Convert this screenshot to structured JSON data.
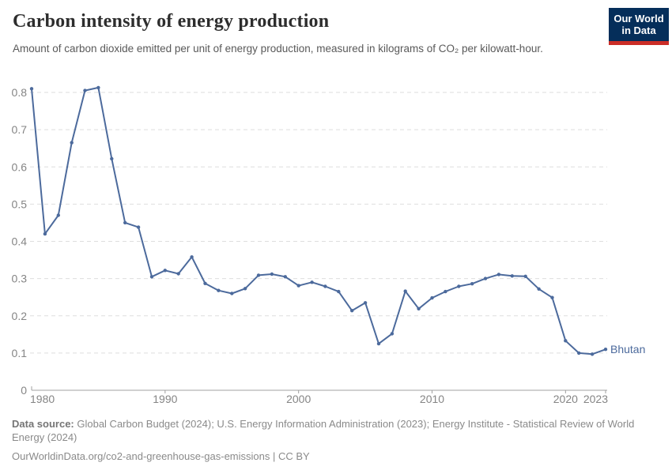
{
  "header": {
    "title": "Carbon intensity of energy production",
    "subtitle": "Amount of carbon dioxide emitted per unit of energy production, measured in kilograms of CO₂ per kilowatt-hour.",
    "logo": {
      "line1": "Our World",
      "line2": "in Data",
      "bg_color": "#052e5a",
      "accent_color": "#cb2d27"
    }
  },
  "chart_data": {
    "type": "line",
    "title": "Carbon intensity of energy production",
    "xlabel": "",
    "ylabel": "kilograms of CO₂ per kilowatt-hour",
    "xlim": [
      1980,
      2023
    ],
    "ylim": [
      0,
      0.8
    ],
    "grid": "dashed-horizontal",
    "grid_color": "#dedede",
    "axis_color": "#a0a0a0",
    "tick_label_color": "#858585",
    "xticks": [
      1980,
      1990,
      2000,
      2010,
      2020,
      2023
    ],
    "yticks": [
      0,
      0.1,
      0.2,
      0.3,
      0.4,
      0.5,
      0.6,
      0.7,
      0.8
    ],
    "legend_position": "end-of-line-label",
    "series": [
      {
        "name": "Bhutan",
        "color": "#4C6A9C",
        "x": [
          1980,
          1981,
          1982,
          1983,
          1984,
          1985,
          1986,
          1987,
          1988,
          1989,
          1990,
          1991,
          1992,
          1993,
          1994,
          1995,
          1996,
          1997,
          1998,
          1999,
          2000,
          2001,
          2002,
          2003,
          2004,
          2005,
          2006,
          2007,
          2008,
          2009,
          2010,
          2011,
          2012,
          2013,
          2014,
          2015,
          2016,
          2017,
          2018,
          2019,
          2020,
          2021,
          2022,
          2023
        ],
        "values": [
          0.81,
          0.42,
          0.47,
          0.665,
          0.805,
          0.813,
          0.622,
          0.45,
          0.438,
          0.305,
          0.322,
          0.313,
          0.358,
          0.287,
          0.268,
          0.26,
          0.273,
          0.309,
          0.312,
          0.305,
          0.281,
          0.29,
          0.279,
          0.265,
          0.214,
          0.235,
          0.125,
          0.152,
          0.266,
          0.219,
          0.248,
          0.265,
          0.279,
          0.286,
          0.3,
          0.311,
          0.307,
          0.306,
          0.272,
          0.249,
          0.133,
          0.1,
          0.097,
          0.11
        ]
      }
    ],
    "entity_label": "Bhutan"
  },
  "footer": {
    "datasource_label": "Data source:",
    "datasource_text": " Global Carbon Budget (2024); U.S. Energy Information Administration (2023); Energy Institute - Statistical Review of World Energy (2024)",
    "link_text": "OurWorldinData.org/co2-and-greenhouse-gas-emissions | CC BY"
  }
}
